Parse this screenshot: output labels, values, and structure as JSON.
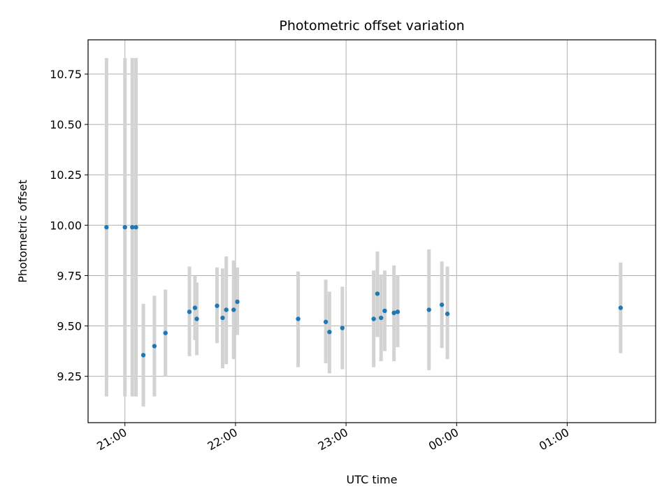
{
  "chart_data": {
    "type": "scatter",
    "title": "Photometric offset variation",
    "xlabel": "UTC time",
    "ylabel": "Photometric offset",
    "x_axis_type": "time",
    "xlim": [
      "20:40",
      "01:48"
    ],
    "ylim": [
      9.02,
      10.92
    ],
    "grid": true,
    "xticks": [
      {
        "t": "21:00",
        "label": "21:00"
      },
      {
        "t": "22:00",
        "label": "22:00"
      },
      {
        "t": "23:00",
        "label": "23:00"
      },
      {
        "t": "00:00",
        "label": "00:00"
      },
      {
        "t": "01:00",
        "label": "01:00"
      }
    ],
    "yticks": [
      {
        "v": 9.25,
        "label": "9.25"
      },
      {
        "v": 9.5,
        "label": "9.50"
      },
      {
        "v": 9.75,
        "label": "9.75"
      },
      {
        "v": 10.0,
        "label": "10.00"
      },
      {
        "v": 10.25,
        "label": "10.25"
      },
      {
        "v": 10.5,
        "label": "10.50"
      },
      {
        "v": 10.75,
        "label": "10.75"
      }
    ],
    "colors": {
      "point": "#1f77b4",
      "errorbar": "#d3d3d3",
      "grid": "#b0b0b0",
      "axes": "#000000"
    },
    "points": [
      {
        "t": "20:50",
        "y": 9.99,
        "ylow": 9.15,
        "yhigh": 10.83
      },
      {
        "t": "21:00",
        "y": 9.99,
        "ylow": 9.15,
        "yhigh": 10.83
      },
      {
        "t": "21:04",
        "y": 9.99,
        "ylow": 9.15,
        "yhigh": 10.83
      },
      {
        "t": "21:06",
        "y": 9.99,
        "ylow": 9.15,
        "yhigh": 10.83
      },
      {
        "t": "21:10",
        "y": 9.355,
        "ylow": 9.1,
        "yhigh": 9.61
      },
      {
        "t": "21:16",
        "y": 9.4,
        "ylow": 9.15,
        "yhigh": 9.65
      },
      {
        "t": "21:22",
        "y": 9.465,
        "ylow": 9.25,
        "yhigh": 9.68
      },
      {
        "t": "21:35",
        "y": 9.57,
        "ylow": 9.35,
        "yhigh": 9.795
      },
      {
        "t": "21:38",
        "y": 9.59,
        "ylow": 9.43,
        "yhigh": 9.75
      },
      {
        "t": "21:39",
        "y": 9.535,
        "ylow": 9.355,
        "yhigh": 9.715
      },
      {
        "t": "21:50",
        "y": 9.6,
        "ylow": 9.415,
        "yhigh": 9.79
      },
      {
        "t": "21:53",
        "y": 9.54,
        "ylow": 9.29,
        "yhigh": 9.785
      },
      {
        "t": "21:55",
        "y": 9.58,
        "ylow": 9.31,
        "yhigh": 9.845
      },
      {
        "t": "21:59",
        "y": 9.58,
        "ylow": 9.335,
        "yhigh": 9.825
      },
      {
        "t": "22:01",
        "y": 9.62,
        "ylow": 9.455,
        "yhigh": 9.79
      },
      {
        "t": "22:34",
        "y": 9.535,
        "ylow": 9.295,
        "yhigh": 9.77
      },
      {
        "t": "22:49",
        "y": 9.52,
        "ylow": 9.315,
        "yhigh": 9.73
      },
      {
        "t": "22:51",
        "y": 9.47,
        "ylow": 9.265,
        "yhigh": 9.67
      },
      {
        "t": "22:58",
        "y": 9.49,
        "ylow": 9.285,
        "yhigh": 9.695
      },
      {
        "t": "23:15",
        "y": 9.535,
        "ylow": 9.295,
        "yhigh": 9.775
      },
      {
        "t": "23:17",
        "y": 9.66,
        "ylow": 9.445,
        "yhigh": 9.87
      },
      {
        "t": "23:19",
        "y": 9.54,
        "ylow": 9.325,
        "yhigh": 9.755
      },
      {
        "t": "23:21",
        "y": 9.575,
        "ylow": 9.375,
        "yhigh": 9.775
      },
      {
        "t": "23:26",
        "y": 9.565,
        "ylow": 9.325,
        "yhigh": 9.8
      },
      {
        "t": "23:28",
        "y": 9.57,
        "ylow": 9.395,
        "yhigh": 9.75
      },
      {
        "t": "23:45",
        "y": 9.58,
        "ylow": 9.28,
        "yhigh": 9.88
      },
      {
        "t": "23:52",
        "y": 9.605,
        "ylow": 9.39,
        "yhigh": 9.82
      },
      {
        "t": "23:55",
        "y": 9.56,
        "ylow": 9.335,
        "yhigh": 9.795
      },
      {
        "t": "01:29",
        "y": 9.59,
        "ylow": 9.365,
        "yhigh": 9.815
      }
    ]
  }
}
